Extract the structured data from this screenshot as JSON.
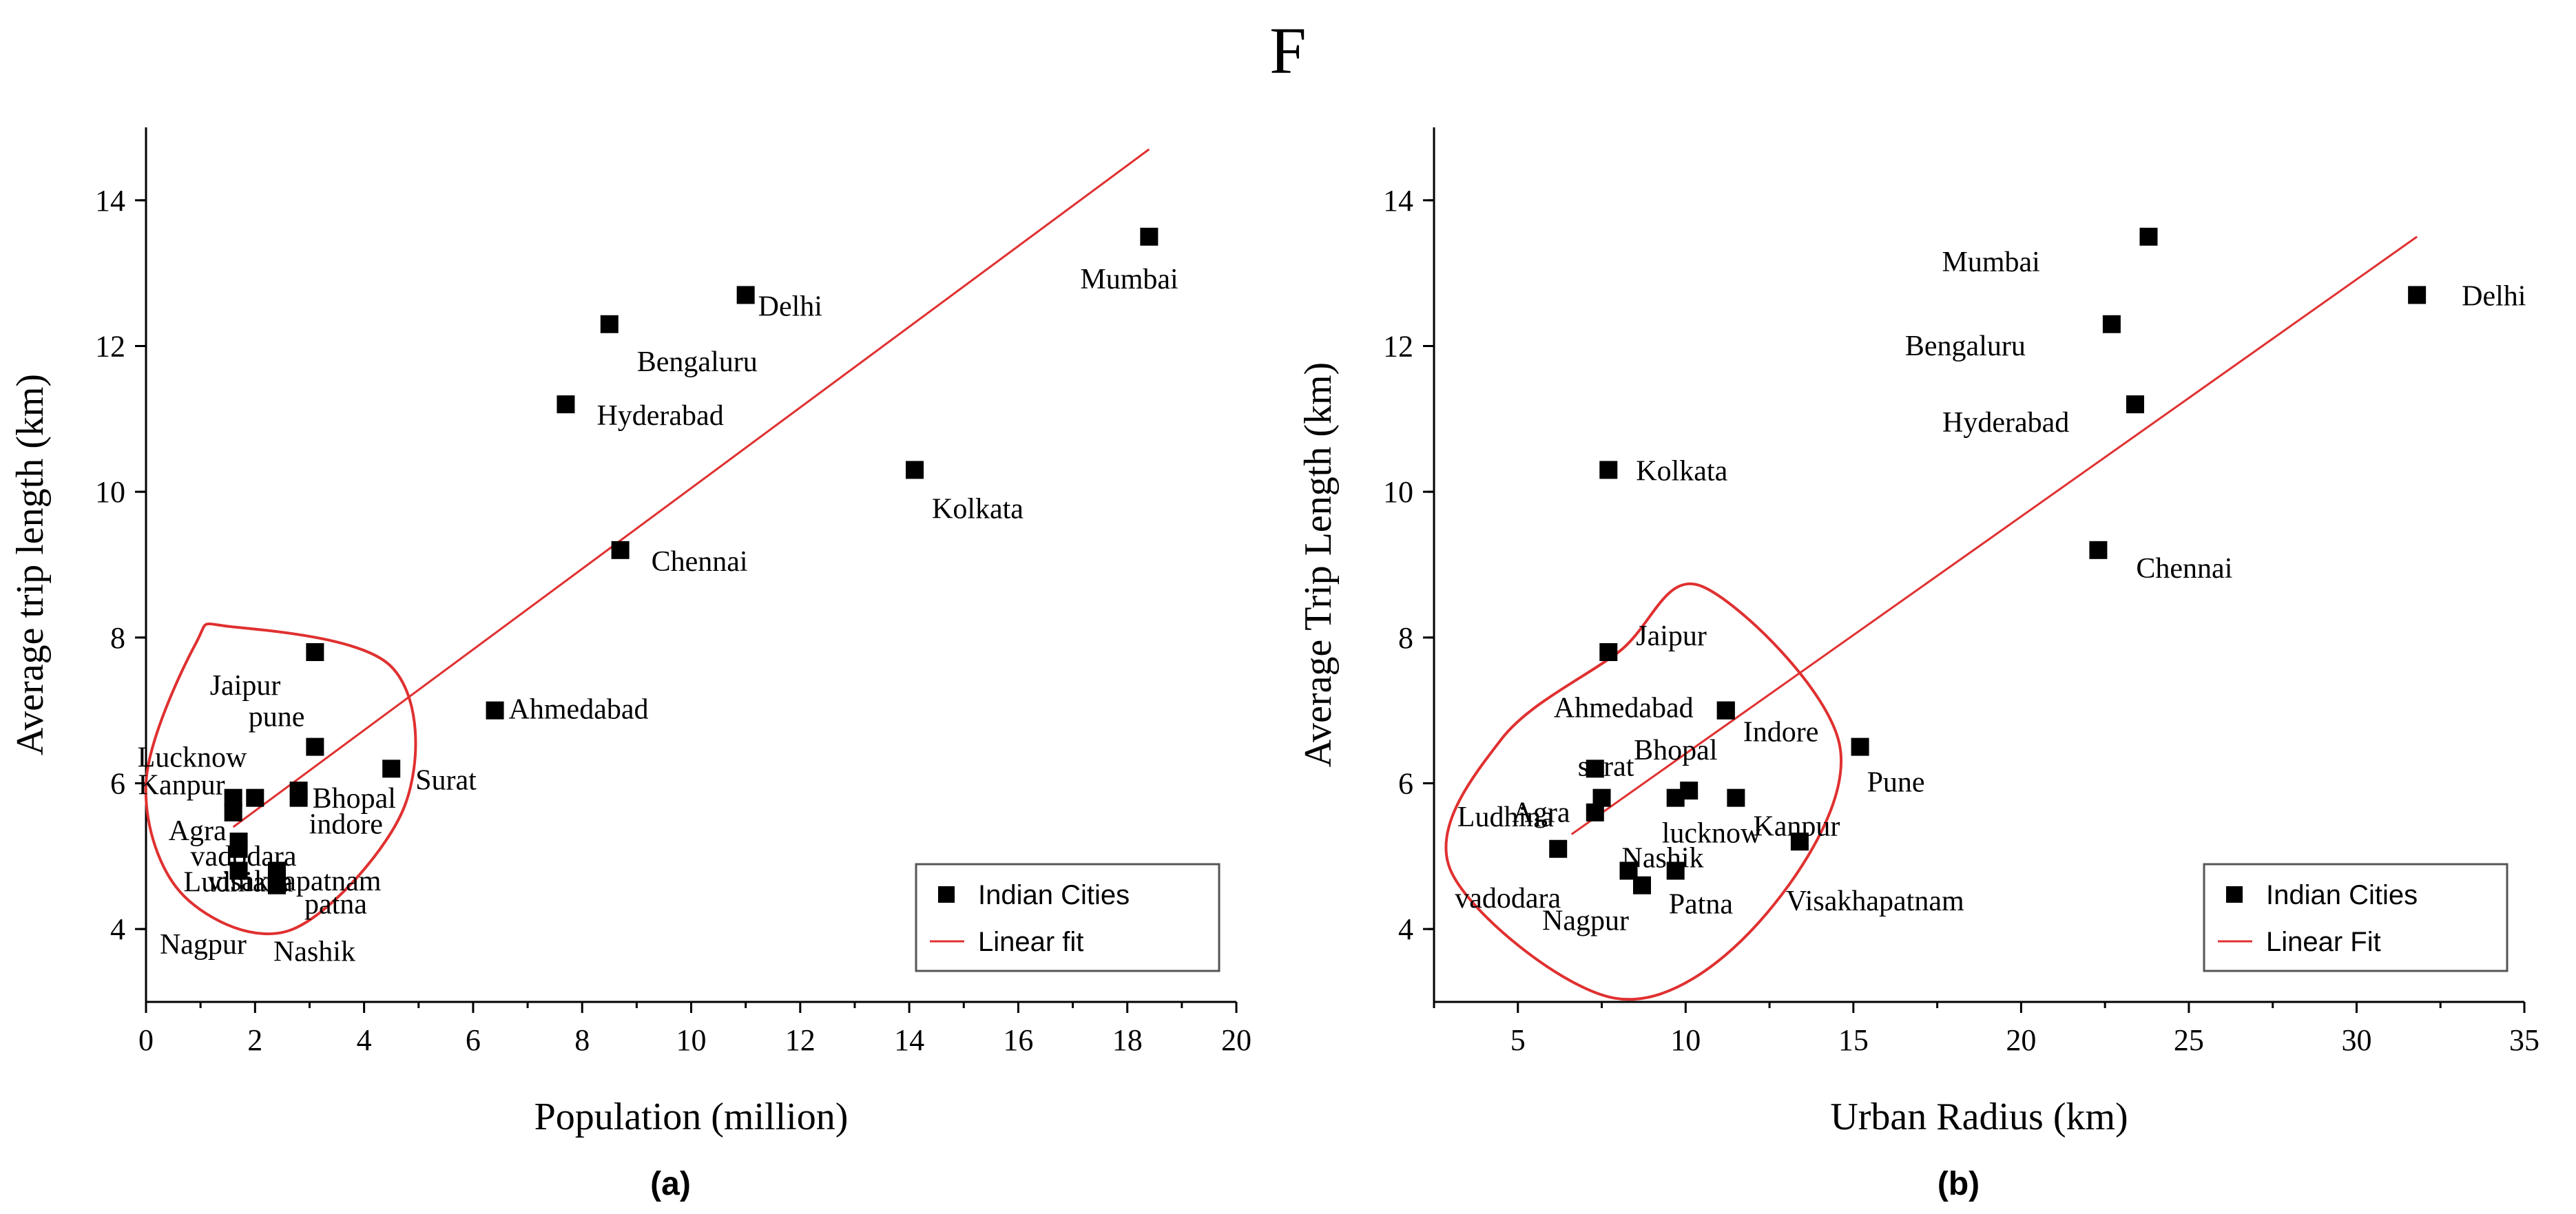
{
  "figure_letter": "F",
  "chart_data": [
    {
      "type": "scatter",
      "caption": "(a)",
      "xlabel": "Population (million)",
      "ylabel": "Average trip length (km)",
      "xlim": [
        0,
        20
      ],
      "ylim": [
        3,
        15
      ],
      "xticks": [
        0,
        2,
        4,
        6,
        8,
        10,
        12,
        14,
        16,
        18,
        20
      ],
      "yticks": [
        4,
        6,
        8,
        10,
        12,
        14
      ],
      "legend": [
        "Indian Cities",
        "Linear fit"
      ],
      "legend_position": "bottom-right",
      "fit_line": {
        "x": [
          1.6,
          18.4
        ],
        "y": [
          5.4,
          14.7
        ]
      },
      "points": [
        {
          "label": "Mumbai",
          "x": 18.4,
          "y": 13.5
        },
        {
          "label": "Delhi",
          "x": 11.0,
          "y": 12.7
        },
        {
          "label": "Bengaluru",
          "x": 8.5,
          "y": 12.3
        },
        {
          "label": "Hyderabad",
          "x": 7.7,
          "y": 11.2
        },
        {
          "label": "Kolkata",
          "x": 14.1,
          "y": 10.3
        },
        {
          "label": "Chennai",
          "x": 8.7,
          "y": 9.2
        },
        {
          "label": "Ahmedabad",
          "x": 6.4,
          "y": 7.0
        },
        {
          "label": "Jaipur",
          "x": 3.1,
          "y": 7.8
        },
        {
          "label": "pune",
          "x": 3.1,
          "y": 6.5
        },
        {
          "label": "Surat",
          "x": 4.5,
          "y": 6.2
        },
        {
          "label": "Lucknow",
          "x": 2.0,
          "y": 5.8
        },
        {
          "label": "Kanpur",
          "x": 1.6,
          "y": 5.8
        },
        {
          "label": "Agra",
          "x": 1.6,
          "y": 5.6
        },
        {
          "label": "Bhopal",
          "x": 2.8,
          "y": 5.9
        },
        {
          "label": "indore",
          "x": 2.8,
          "y": 5.8
        },
        {
          "label": "vadodara",
          "x": 1.7,
          "y": 5.2
        },
        {
          "label": "visakhapatnam",
          "x": 1.7,
          "y": 5.1
        },
        {
          "label": "Ludhiana",
          "x": 1.7,
          "y": 4.8
        },
        {
          "label": "patna",
          "x": 2.4,
          "y": 4.8
        },
        {
          "label": "Nashik",
          "x": 2.4,
          "y": 4.6
        },
        {
          "label": "Nagpur",
          "x": 2.4,
          "y": 4.7
        }
      ]
    },
    {
      "type": "scatter",
      "caption": "(b)",
      "xlabel": "Urban Radius (km)",
      "ylabel": "Average Trip Length (km)",
      "xlim": [
        2.5,
        35
      ],
      "ylim": [
        3,
        15
      ],
      "xticks": [
        5,
        10,
        15,
        20,
        25,
        30,
        35
      ],
      "yticks": [
        4,
        6,
        8,
        10,
        12,
        14
      ],
      "legend": [
        "Indian Cities",
        "Linear Fit"
      ],
      "legend_position": "bottom-right",
      "fit_line": {
        "x": [
          6.6,
          31.8
        ],
        "y": [
          5.3,
          13.5
        ]
      },
      "points": [
        {
          "label": "Mumbai",
          "x": 23.8,
          "y": 13.5
        },
        {
          "label": "Delhi",
          "x": 31.8,
          "y": 12.7
        },
        {
          "label": "Bengaluru",
          "x": 22.7,
          "y": 12.3
        },
        {
          "label": "Hyderabad",
          "x": 23.4,
          "y": 11.2
        },
        {
          "label": "Kolkata",
          "x": 7.7,
          "y": 10.3
        },
        {
          "label": "Chennai",
          "x": 22.3,
          "y": 9.2
        },
        {
          "label": "Jaipur",
          "x": 7.7,
          "y": 7.8
        },
        {
          "label": "Ahmedabad",
          "x": 11.2,
          "y": 7.0
        },
        {
          "label": "Indore",
          "x": 11.2,
          "y": 7.0
        },
        {
          "label": "Pune",
          "x": 15.2,
          "y": 6.5
        },
        {
          "label": "surat",
          "x": 7.3,
          "y": 6.2
        },
        {
          "label": "Agra",
          "x": 7.5,
          "y": 5.8
        },
        {
          "label": "Bhopal",
          "x": 10.1,
          "y": 5.9
        },
        {
          "label": "lucknow",
          "x": 9.7,
          "y": 5.8
        },
        {
          "label": "Kanpur",
          "x": 11.5,
          "y": 5.8
        },
        {
          "label": "Ludhina",
          "x": 7.3,
          "y": 5.6
        },
        {
          "label": "Visakhapatnam",
          "x": 13.4,
          "y": 5.2
        },
        {
          "label": "vadodara",
          "x": 6.2,
          "y": 5.1
        },
        {
          "label": "Nashik",
          "x": 8.3,
          "y": 4.8
        },
        {
          "label": "Patna",
          "x": 9.7,
          "y": 4.8
        },
        {
          "label": "Nagpur",
          "x": 8.7,
          "y": 4.6
        }
      ]
    }
  ]
}
